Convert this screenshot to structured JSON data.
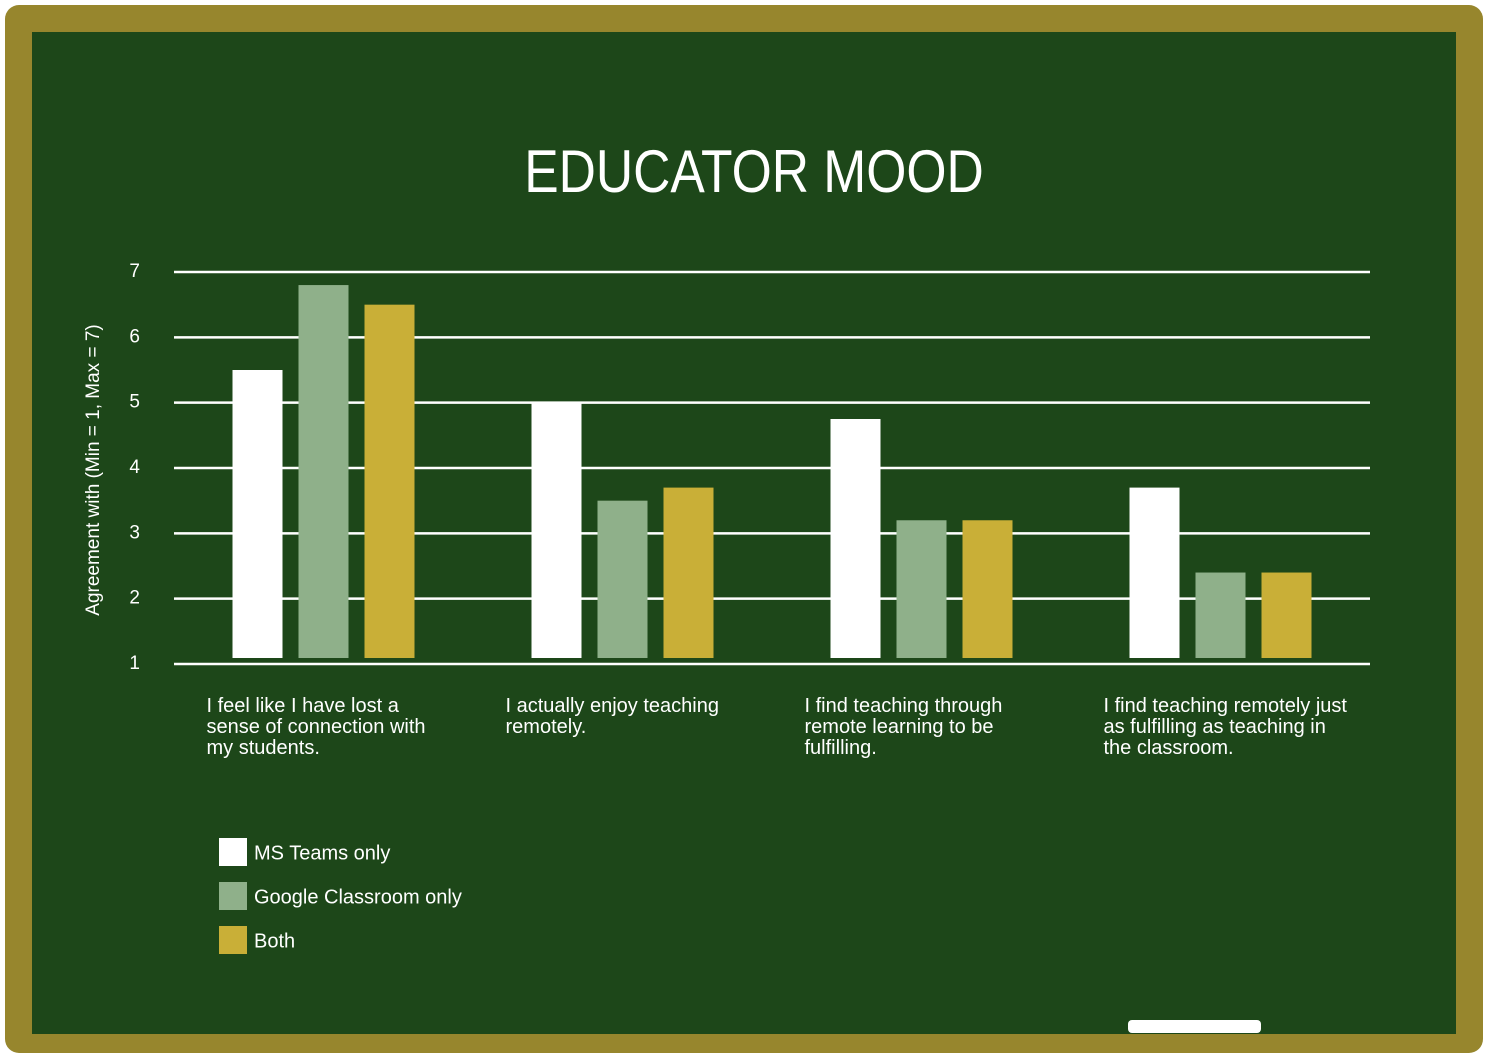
{
  "chart_data": {
    "type": "bar",
    "title": "EDUCATOR MOOD",
    "y_label": "Agreement with (Min = 1, Max = 7)",
    "categories": [
      "I feel like I have lost a sense of connection with my students.",
      "I actually enjoy teaching remotely.",
      "I find teaching through remote learning to be fulfilling.",
      "I find teaching remotely just as fulfilling as teaching in the classroom."
    ],
    "series": [
      {
        "name": "MS Teams only",
        "color": "#ffffff",
        "values": [
          5.5,
          5.0,
          4.75,
          3.7
        ]
      },
      {
        "name": "Google Classroom only",
        "color": "#8fb08a",
        "values": [
          6.8,
          3.5,
          3.2,
          2.4
        ]
      },
      {
        "name": "Both",
        "color": "#c9af37",
        "values": [
          6.5,
          3.7,
          3.2,
          2.4
        ]
      }
    ],
    "ylim": [
      1,
      7
    ],
    "yticks": [
      1,
      2,
      3,
      4,
      5,
      6,
      7
    ],
    "grid": true,
    "legend": "bottom-left"
  }
}
